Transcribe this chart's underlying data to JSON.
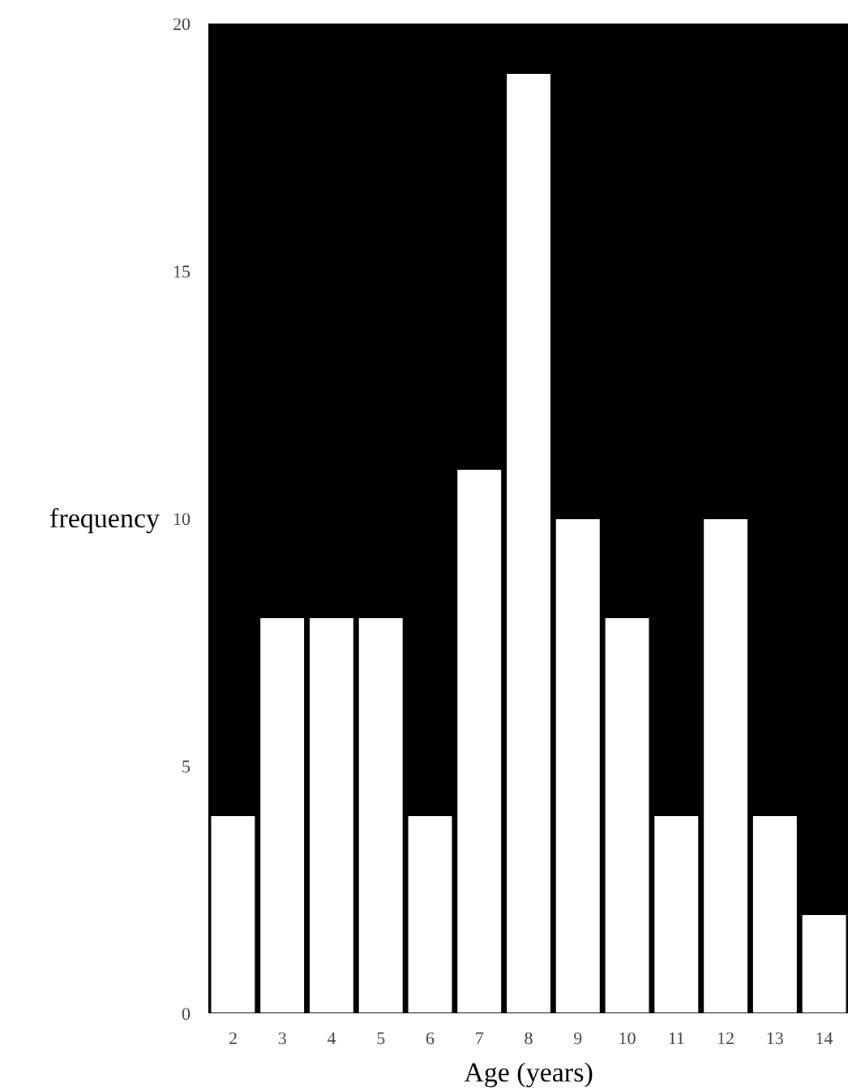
{
  "chart_data": {
    "type": "bar",
    "xlabel": "Age (years)",
    "ylabel": "frequency",
    "categories": [
      "2",
      "3",
      "4",
      "5",
      "6",
      "7",
      "8",
      "9",
      "10",
      "11",
      "12",
      "13",
      "14"
    ],
    "values": [
      4,
      8,
      8,
      8,
      4,
      11,
      19,
      10,
      8,
      4,
      10,
      4,
      2
    ],
    "color": "#ffffff",
    "ylim": [
      0,
      20
    ],
    "yticks": [
      0,
      5,
      10,
      15,
      20
    ]
  }
}
